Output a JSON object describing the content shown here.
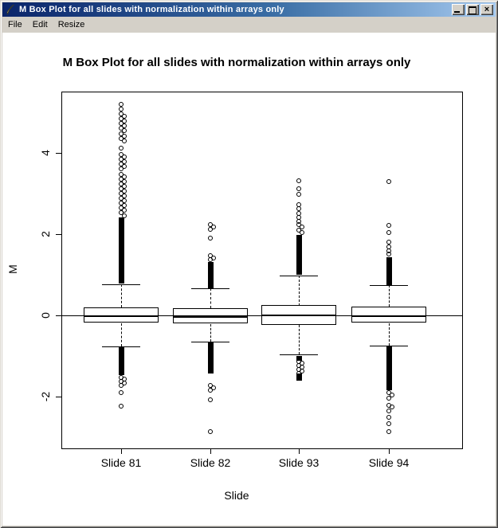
{
  "window": {
    "title": "M Box Plot for all slides with normalization within arrays only",
    "app_icon": "feather-quill-icon",
    "controls": [
      {
        "name": "minimize",
        "glyph": "_"
      },
      {
        "name": "maximize",
        "glyph": "□"
      },
      {
        "name": "close",
        "glyph": "×"
      }
    ]
  },
  "menu": {
    "items": [
      "File",
      "Edit",
      "Resize"
    ]
  },
  "colors": {
    "titlebar_left": "#0a246a",
    "titlebar_right": "#a6caf0",
    "window_face": "#d4d0c8",
    "plot_background": "#ffffff",
    "plot_foreground": "#000000"
  },
  "chart_data": {
    "type": "boxplot",
    "title": "M Box Plot for all slides with normalization within arrays only",
    "xlabel": "Slide",
    "ylabel": "M",
    "categories": [
      "Slide 81",
      "Slide 82",
      "Slide 93",
      "Slide 94"
    ],
    "yticks": [
      -2,
      0,
      2,
      4
    ],
    "ylim": [
      -3.28,
      5.5
    ],
    "reference_line": 0,
    "grid": false,
    "boxes": [
      {
        "label": "Slide 81",
        "q1": -0.2,
        "median": -0.02,
        "q3": 0.18,
        "whisker_low": -0.77,
        "whisker_high": 0.75,
        "dense_outlier_ranges": [
          [
            0.78,
            2.4
          ],
          [
            -0.78,
            -1.48
          ]
        ],
        "outliers_high": [
          2.45,
          2.51,
          2.57,
          2.63,
          2.69,
          2.75,
          2.81,
          2.87,
          2.93,
          2.99,
          3.05,
          3.11,
          3.17,
          3.23,
          3.29,
          3.35,
          3.41,
          3.47,
          3.59,
          3.65,
          3.71,
          3.77,
          3.83,
          3.89,
          3.95,
          4.1,
          4.29,
          4.35,
          4.41,
          4.47,
          4.53,
          4.59,
          4.65,
          4.71,
          4.77,
          4.83,
          4.89,
          4.95,
          5.06,
          5.18
        ],
        "outliers_low": [
          -1.53,
          -1.58,
          -1.63,
          -1.68,
          -1.74,
          -1.92,
          -2.25
        ]
      },
      {
        "label": "Slide 82",
        "q1": -0.22,
        "median": -0.04,
        "q3": 0.16,
        "whisker_low": -0.65,
        "whisker_high": 0.65,
        "dense_outlier_ranges": [
          [
            0.65,
            1.31
          ],
          [
            -0.68,
            -1.45
          ]
        ],
        "outliers_high": [
          1.36,
          1.41,
          1.47,
          1.9,
          2.1,
          2.16,
          2.22
        ],
        "outliers_low": [
          -1.73,
          -1.79,
          -1.85,
          -2.08,
          -2.88
        ]
      },
      {
        "label": "Slide 93",
        "q1": -0.25,
        "median": 0.0,
        "q3": 0.24,
        "whisker_low": -0.98,
        "whisker_high": 0.98,
        "dense_outlier_ranges": [
          [
            0.98,
            1.97
          ],
          [
            -1.0,
            -1.12
          ],
          [
            -1.45,
            -1.62
          ]
        ],
        "outliers_high": [
          2.02,
          2.09,
          2.16,
          2.23,
          2.31,
          2.4,
          2.5,
          2.61,
          2.72,
          2.97,
          3.1,
          3.3
        ],
        "outliers_low": [
          -1.14,
          -1.19,
          -1.24,
          -1.29,
          -1.34,
          -1.39,
          -1.44
        ]
      },
      {
        "label": "Slide 94",
        "q1": -0.2,
        "median": -0.02,
        "q3": 0.2,
        "whisker_low": -0.75,
        "whisker_high": 0.73,
        "dense_outlier_ranges": [
          [
            0.73,
            1.42
          ],
          [
            -0.75,
            -1.85
          ]
        ],
        "outliers_high": [
          1.5,
          1.58,
          1.68,
          1.8,
          2.02,
          2.2,
          3.28
        ],
        "outliers_low": [
          -1.92,
          -1.98,
          -2.04,
          -2.22,
          -2.27,
          -2.36,
          -2.52,
          -2.68,
          -2.88
        ]
      }
    ]
  }
}
